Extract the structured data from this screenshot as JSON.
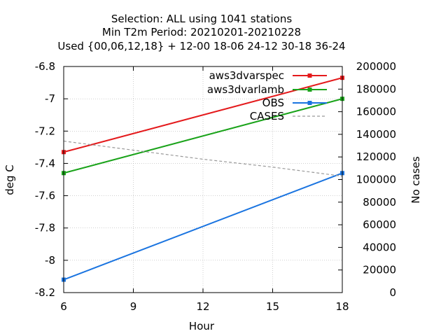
{
  "chart_data": {
    "type": "line",
    "title_lines": [
      "Selection: ALL using  1041 stations",
      "Min T2m   Period: 20210201-20210228",
      "Used {00,06,12,18} + 12-00 18-06 24-12 30-18 36-24"
    ],
    "xlabel": "Hour",
    "ylabel": "deg C",
    "y2label": "No cases",
    "xlim": [
      6,
      18
    ],
    "ylim": [
      -8.2,
      -6.8
    ],
    "y2lim": [
      0,
      200000
    ],
    "x_ticks": [
      6,
      9,
      12,
      15,
      18
    ],
    "y_ticks": [
      -8.2,
      -8,
      -7.8,
      -7.6,
      -7.4,
      -7.2,
      -7,
      -6.8
    ],
    "y2_ticks": [
      0,
      20000,
      40000,
      60000,
      80000,
      100000,
      120000,
      140000,
      160000,
      180000,
      200000
    ],
    "grid": true,
    "legend_position": "top-right",
    "series": [
      {
        "name": "aws3dvarspec",
        "color": "#e41a1c",
        "axis": "y",
        "x": [
          6,
          18
        ],
        "values": [
          -7.33,
          -6.87
        ]
      },
      {
        "name": "aws3dvarlamb",
        "color": "#1aa31a",
        "axis": "y",
        "x": [
          6,
          18
        ],
        "values": [
          -7.46,
          -7.0
        ]
      },
      {
        "name": "OBS",
        "color": "#1a74e0",
        "axis": "y",
        "x": [
          6,
          18
        ],
        "values": [
          -8.12,
          -7.46
        ]
      },
      {
        "name": "CASES",
        "color": "#999999",
        "axis": "y2",
        "dashed": true,
        "x": [
          6,
          9,
          12,
          15,
          18
        ],
        "values": [
          134000,
          126000,
          118000,
          111000,
          103000
        ]
      }
    ]
  }
}
